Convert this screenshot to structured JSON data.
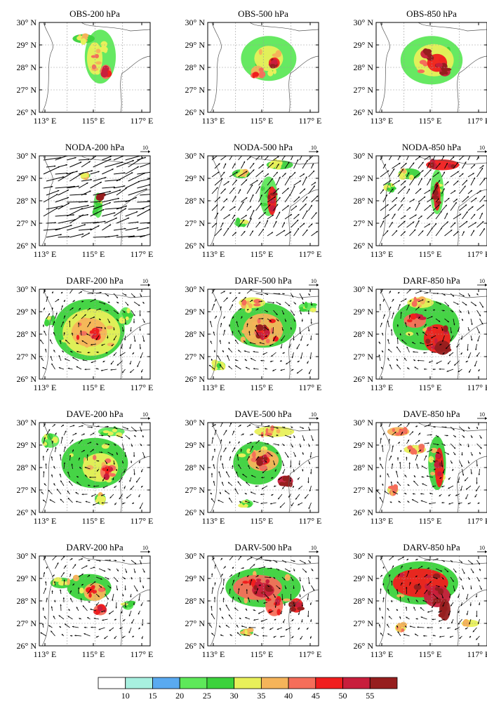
{
  "figure": {
    "rows": [
      "OBS",
      "NODA",
      "DARF",
      "DAVE",
      "DARV"
    ],
    "levels": [
      "200 hPa",
      "500 hPa",
      "850 hPa"
    ],
    "panels": [
      [
        "OBS-200 hPa",
        "OBS-500 hPa",
        "OBS-850 hPa"
      ],
      [
        "NODA-200 hPa",
        "NODA-500 hPa",
        "NODA-850 hPa"
      ],
      [
        "DARF-200 hPa",
        "DARF-500 hPa",
        "DARF-850 hPa"
      ],
      [
        "DAVE-200 hPa",
        "DAVE-500 hPa",
        "DAVE-850 hPa"
      ],
      [
        "DARV-200 hPa",
        "DARV-500 hPa",
        "DARV-850 hPa"
      ]
    ],
    "lat_labels": [
      "30° N",
      "29° N",
      "28° N",
      "27° N",
      "26° N"
    ],
    "lon_labels": [
      "113° E",
      "115° E",
      "117° E"
    ],
    "vector_ref_label": "10"
  },
  "colorbar": {
    "labels": [
      "10",
      "15",
      "20",
      "25",
      "30",
      "35",
      "40",
      "45",
      "50",
      "55"
    ],
    "colors": [
      "#ffffff",
      "#a8f0e0",
      "#5aaaf0",
      "#5ee85a",
      "#3cd23c",
      "#e8f05a",
      "#f5b45a",
      "#f56e5a",
      "#f01e1e",
      "#c81e3c",
      "#961e1e"
    ]
  }
}
